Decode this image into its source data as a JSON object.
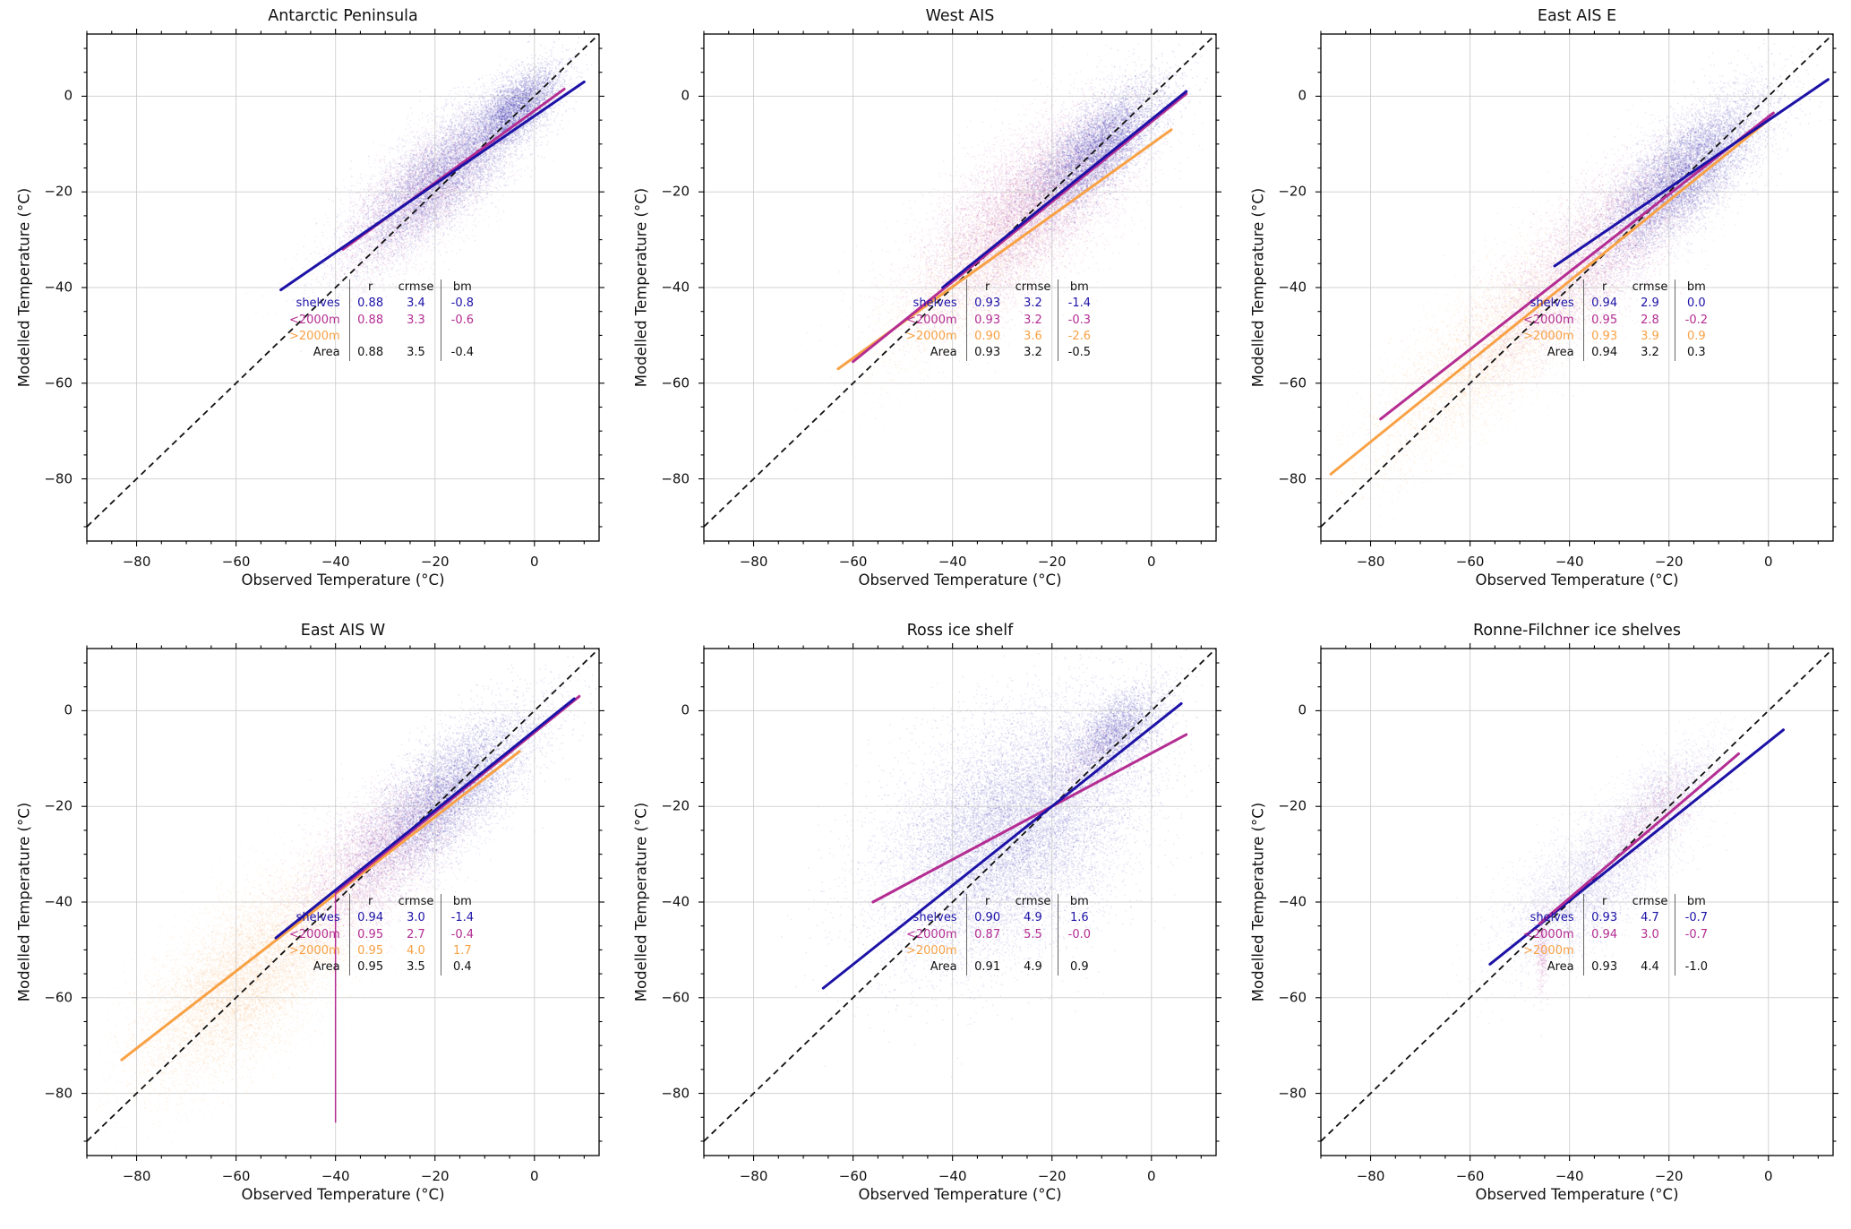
{
  "figure": {
    "background": "#ffffff",
    "colors": {
      "shelves": "#1c12a6",
      "sub2000": "#b42d92",
      "over2000": "#f8a145",
      "area": "#111111"
    },
    "grid_color": "#c8c8c8",
    "diagonal": {
      "color": "#111111",
      "dash": [
        7,
        5
      ],
      "width": 1.8
    },
    "axes": {
      "xlabel": "Observed Temperature (°C)",
      "ylabel": "Modelled Temperature (°C)",
      "xmin": -90,
      "xmax": 13,
      "ymin": -93,
      "ymax": 13,
      "major_ticks": [
        -80,
        -60,
        -40,
        -20,
        0
      ],
      "tick_labels": [
        "−80",
        "−60",
        "−40",
        "−20",
        "0"
      ],
      "minor_step": 5,
      "grid": true
    },
    "stats_header": [
      "r",
      "crmse",
      "bm"
    ],
    "legend_series": [
      {
        "key": "shelves",
        "label": "shelves"
      },
      {
        "key": "sub2000",
        "label": "<2000m"
      },
      {
        "key": "over2000",
        "label": ">2000m"
      },
      {
        "key": "area",
        "label": "Area"
      }
    ]
  },
  "chart_data": [
    {
      "id": "antarctic-peninsula",
      "type": "scatter",
      "title": "Antarctic Peninsula",
      "stats": {
        "rows": [
          {
            "series": "shelves",
            "label": "shelves",
            "r": "0.88",
            "crmse": "3.4",
            "bm": "-0.8"
          },
          {
            "series": "sub2000",
            "label": "<2000m",
            "r": "0.88",
            "crmse": "3.3",
            "bm": "-0.6"
          },
          {
            "series": "over2000",
            "label": ">2000m",
            "r": "",
            "crmse": "",
            "bm": ""
          },
          {
            "series": "area",
            "label": "Area",
            "r": "0.88",
            "crmse": "3.5",
            "bm": "-0.4"
          }
        ]
      },
      "regression_lines": [
        {
          "series": "sub2000",
          "x1": -38.5,
          "y1": -32,
          "x2": 6,
          "y2": 1.5
        },
        {
          "series": "shelves",
          "x1": -51,
          "y1": -40.5,
          "x2": 10,
          "y2": 3
        }
      ],
      "point_clusters": [
        {
          "series": "sub2000",
          "x": -23,
          "y": -21,
          "along": 12,
          "across": 4.5,
          "n": 5000,
          "alpha": 0.09
        },
        {
          "series": "shelves",
          "x": -18,
          "y": -16,
          "along": 12,
          "across": 4,
          "n": 9000,
          "alpha": 0.1
        },
        {
          "series": "shelves",
          "x": -3.5,
          "y": -2.5,
          "along": 5.5,
          "across": 2.5,
          "n": 4000,
          "alpha": 0.12
        }
      ]
    },
    {
      "id": "west-ais",
      "type": "scatter",
      "title": "West AIS",
      "stats": {
        "rows": [
          {
            "series": "shelves",
            "label": "shelves",
            "r": "0.93",
            "crmse": "3.2",
            "bm": "-1.4"
          },
          {
            "series": "sub2000",
            "label": "<2000m",
            "r": "0.93",
            "crmse": "3.2",
            "bm": "-0.3"
          },
          {
            "series": "over2000",
            "label": ">2000m",
            "r": "0.90",
            "crmse": "3.6",
            "bm": "-2.6"
          },
          {
            "series": "area",
            "label": "Area",
            "r": "0.93",
            "crmse": "3.2",
            "bm": "-0.5"
          }
        ]
      },
      "regression_lines": [
        {
          "series": "over2000",
          "x1": -63,
          "y1": -57,
          "x2": 4,
          "y2": -7
        },
        {
          "series": "sub2000",
          "x1": -60,
          "y1": -55.5,
          "x2": 7,
          "y2": 0.5
        },
        {
          "series": "shelves",
          "x1": -42,
          "y1": -40,
          "x2": 7,
          "y2": 1
        }
      ],
      "point_clusters": [
        {
          "series": "over2000",
          "x": -34,
          "y": -35,
          "along": 15,
          "across": 5,
          "n": 3000,
          "alpha": 0.09
        },
        {
          "series": "sub2000",
          "x": -25,
          "y": -24,
          "along": 14,
          "across": 6,
          "n": 12000,
          "alpha": 0.1
        },
        {
          "series": "shelves",
          "x": -11,
          "y": -11,
          "along": 9,
          "across": 3.5,
          "n": 7000,
          "alpha": 0.12
        }
      ]
    },
    {
      "id": "east-ais-e",
      "type": "scatter",
      "title": "East AIS E",
      "stats": {
        "rows": [
          {
            "series": "shelves",
            "label": "shelves",
            "r": "0.94",
            "crmse": "2.9",
            "bm": "0.0"
          },
          {
            "series": "sub2000",
            "label": "<2000m",
            "r": "0.95",
            "crmse": "2.8",
            "bm": "-0.2"
          },
          {
            "series": "over2000",
            "label": ">2000m",
            "r": "0.93",
            "crmse": "3.9",
            "bm": "0.9"
          },
          {
            "series": "area",
            "label": "Area",
            "r": "0.94",
            "crmse": "3.2",
            "bm": "0.3"
          }
        ]
      },
      "regression_lines": [
        {
          "series": "over2000",
          "x1": -88,
          "y1": -79,
          "x2": 0,
          "y2": -5
        },
        {
          "series": "sub2000",
          "x1": -78,
          "y1": -67.5,
          "x2": 1,
          "y2": -3.5
        },
        {
          "series": "shelves",
          "x1": -43,
          "y1": -35.5,
          "x2": 12,
          "y2": 3.5
        }
      ],
      "point_clusters": [
        {
          "series": "over2000",
          "x": -56,
          "y": -53,
          "along": 17,
          "across": 5.5,
          "n": 6000,
          "alpha": 0.1
        },
        {
          "series": "sub2000",
          "x": -34,
          "y": -32,
          "along": 16,
          "across": 5.5,
          "n": 8000,
          "alpha": 0.1
        },
        {
          "series": "shelves",
          "x": -17,
          "y": -16.5,
          "along": 11,
          "across": 4,
          "n": 10000,
          "alpha": 0.11
        }
      ]
    },
    {
      "id": "east-ais-w",
      "type": "scatter",
      "title": "East AIS W",
      "stats": {
        "rows": [
          {
            "series": "shelves",
            "label": "shelves",
            "r": "0.94",
            "crmse": "3.0",
            "bm": "-1.4"
          },
          {
            "series": "sub2000",
            "label": "<2000m",
            "r": "0.95",
            "crmse": "2.7",
            "bm": "-0.4"
          },
          {
            "series": "over2000",
            "label": ">2000m",
            "r": "0.95",
            "crmse": "4.0",
            "bm": "1.7"
          },
          {
            "series": "area",
            "label": "Area",
            "r": "0.95",
            "crmse": "3.5",
            "bm": "0.4"
          }
        ]
      },
      "regression_lines": [
        {
          "series": "over2000",
          "x1": -83,
          "y1": -73,
          "x2": -3,
          "y2": -8.5
        },
        {
          "series": "sub2000",
          "x1": -40,
          "y1": -38,
          "x2": -40,
          "y2": -86,
          "width": 1.5
        },
        {
          "series": "sub2000",
          "x1": -40,
          "y1": -38,
          "x2": 9,
          "y2": 3
        },
        {
          "series": "shelves",
          "x1": -52,
          "y1": -47.5,
          "x2": 8,
          "y2": 2.5
        }
      ],
      "point_clusters": [
        {
          "series": "over2000",
          "x": -58,
          "y": -56,
          "along": 14,
          "across": 6.5,
          "n": 10000,
          "alpha": 0.1
        },
        {
          "series": "sub2000",
          "x": -31,
          "y": -30,
          "along": 11,
          "across": 5,
          "n": 6000,
          "alpha": 0.1
        },
        {
          "series": "shelves",
          "x": -18,
          "y": -18,
          "along": 12,
          "across": 4.5,
          "n": 9000,
          "alpha": 0.11
        }
      ]
    },
    {
      "id": "ross-ice-shelf",
      "type": "scatter",
      "title": "Ross ice shelf",
      "stats": {
        "rows": [
          {
            "series": "shelves",
            "label": "shelves",
            "r": "0.90",
            "crmse": "4.9",
            "bm": "1.6"
          },
          {
            "series": "sub2000",
            "label": "<2000m",
            "r": "0.87",
            "crmse": "5.5",
            "bm": "-0.0"
          },
          {
            "series": "over2000",
            "label": ">2000m",
            "r": "",
            "crmse": "",
            "bm": ""
          },
          {
            "series": "area",
            "label": "Area",
            "r": "0.91",
            "crmse": "4.9",
            "bm": "0.9"
          }
        ]
      },
      "regression_lines": [
        {
          "series": "sub2000",
          "x1": -56,
          "y1": -40,
          "x2": 7,
          "y2": -5
        },
        {
          "series": "shelves",
          "x1": -66,
          "y1": -58,
          "x2": 6,
          "y2": 1.5
        }
      ],
      "point_clusters": [
        {
          "series": "shelves",
          "x": -28,
          "y": -25,
          "along": 15,
          "across": 9.5,
          "n": 16000,
          "alpha": 0.1
        },
        {
          "series": "shelves",
          "x": -7,
          "y": -4.5,
          "along": 6,
          "across": 3,
          "n": 3000,
          "alpha": 0.12
        },
        {
          "series": "sub2000",
          "x": -12,
          "y": -10,
          "along": 6,
          "across": 3,
          "n": 700,
          "alpha": 0.08
        }
      ]
    },
    {
      "id": "ronne-filchner-ice-shelves",
      "type": "scatter",
      "title": "Ronne-Filchner ice shelves",
      "stats": {
        "rows": [
          {
            "series": "shelves",
            "label": "shelves",
            "r": "0.93",
            "crmse": "4.7",
            "bm": "-0.7"
          },
          {
            "series": "sub2000",
            "label": "<2000m",
            "r": "0.94",
            "crmse": "3.0",
            "bm": "-0.7"
          },
          {
            "series": "over2000",
            "label": ">2000m",
            "r": "",
            "crmse": "",
            "bm": ""
          },
          {
            "series": "area",
            "label": "Area",
            "r": "0.93",
            "crmse": "4.4",
            "bm": "-1.0"
          }
        ]
      },
      "regression_lines": [
        {
          "series": "shelves",
          "x1": -56,
          "y1": -53,
          "x2": 3,
          "y2": -4
        },
        {
          "series": "sub2000",
          "x1": -46,
          "y1": -44.5,
          "x2": -6,
          "y2": -9
        }
      ],
      "point_clusters": [
        {
          "series": "shelves",
          "x": -36,
          "y": -36,
          "along": 11,
          "across": 5,
          "n": 4500,
          "alpha": 0.08
        },
        {
          "series": "shelves",
          "x": -20,
          "y": -17,
          "along": 7,
          "across": 3.5,
          "n": 1500,
          "alpha": 0.07
        },
        {
          "series": "sub2000",
          "x": -23,
          "y": -22,
          "along": 8,
          "across": 3,
          "n": 1500,
          "alpha": 0.09
        },
        {
          "series": "sub2000",
          "x": -45.5,
          "y": -50,
          "axis": true,
          "sx": 0.6,
          "sy": 4.5,
          "n": 400,
          "alpha": 0.11
        }
      ]
    }
  ]
}
